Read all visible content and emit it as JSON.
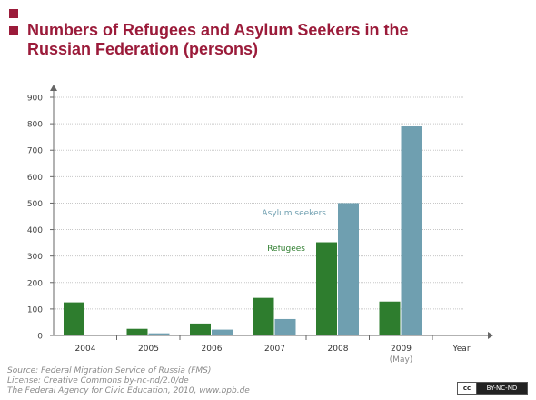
{
  "header": {
    "title_line1": "Numbers of Refugees and Asylum Seekers in the",
    "title_line2": "Russian Federation (persons)"
  },
  "chart_data": {
    "type": "bar",
    "categories": [
      "2004",
      "2005",
      "2006",
      "2007",
      "2008",
      "2009"
    ],
    "category_sublabels": [
      "",
      "",
      "",
      "",
      "",
      "(May)"
    ],
    "xlabel": "Year",
    "ylabel": "",
    "ylim": [
      0,
      900
    ],
    "yticks": [
      0,
      100,
      200,
      300,
      400,
      500,
      600,
      700,
      800,
      900
    ],
    "grid": true,
    "series": [
      {
        "name": "Refugees",
        "color": "#2e7d2e",
        "values": [
          125,
          25,
          45,
          142,
          352,
          128
        ]
      },
      {
        "name": "Asylum seekers",
        "color": "#6f9fb0",
        "values": [
          0,
          8,
          22,
          62,
          500,
          790
        ]
      }
    ]
  },
  "footer": {
    "source": "Source: Federal Migration Service of Russia (FMS)",
    "license": "License: Creative Commons by-nc-nd/2.0/de",
    "publisher": "The Federal Agency for Civic Education, 2010, www.bpb.de"
  },
  "badge": {
    "cc": "cc",
    "text": "BY-NC-ND"
  }
}
